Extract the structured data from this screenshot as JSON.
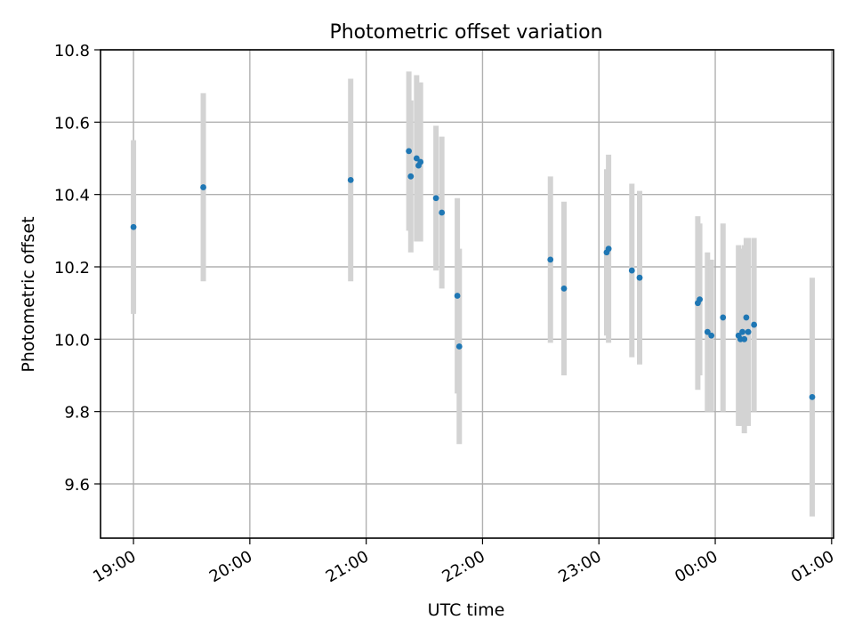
{
  "chart_data": {
    "type": "scatter",
    "title": "Photometric offset variation",
    "xlabel": "UTC time",
    "ylabel": "Photometric offset",
    "x_ticks": [
      "19:00",
      "20:00",
      "21:00",
      "22:00",
      "23:00",
      "00:00",
      "01:00"
    ],
    "x_tick_times": [
      "19:00",
      "20:00",
      "21:00",
      "22:00",
      "23:00",
      "24:00",
      "25:00"
    ],
    "xlim": [
      "18:43",
      "25:01"
    ],
    "y_ticks": [
      "9.6",
      "9.8",
      "10.0",
      "10.2",
      "10.4",
      "10.6",
      "10.8"
    ],
    "ylim": [
      9.45,
      10.8
    ],
    "grid": true,
    "colors": {
      "points": "#1f77b4",
      "errorbars": "#d3d3d3",
      "grid": "#b0b0b0"
    },
    "series": [
      {
        "x": [
          "19:00",
          "19:36",
          "20:52",
          "21:22",
          "21:23",
          "21:26",
          "21:27",
          "21:28",
          "21:36",
          "21:39",
          "21:47",
          "21:48",
          "22:35",
          "22:42",
          "23:04",
          "23:05",
          "23:17",
          "23:21",
          "23:51",
          "23:52",
          "23:56",
          "23:58",
          "24:04",
          "24:12",
          "24:13",
          "24:14",
          "24:15",
          "24:16",
          "24:17",
          "24:20",
          "24:50"
        ],
        "y": [
          10.31,
          10.42,
          10.44,
          10.52,
          10.45,
          10.5,
          10.48,
          10.49,
          10.39,
          10.35,
          10.12,
          9.98,
          10.22,
          10.14,
          10.24,
          10.25,
          10.19,
          10.17,
          10.1,
          10.11,
          10.02,
          10.01,
          10.06,
          10.01,
          10.0,
          10.02,
          10.0,
          10.06,
          10.02,
          10.04,
          9.84
        ],
        "yerr": [
          0.24,
          0.26,
          0.28,
          0.22,
          0.21,
          0.23,
          0.21,
          0.22,
          0.2,
          0.21,
          0.27,
          0.27,
          0.23,
          0.24,
          0.23,
          0.26,
          0.24,
          0.24,
          0.24,
          0.21,
          0.22,
          0.21,
          0.26,
          0.25,
          0.24,
          0.23,
          0.26,
          0.22,
          0.26,
          0.24,
          0.33
        ]
      }
    ]
  }
}
